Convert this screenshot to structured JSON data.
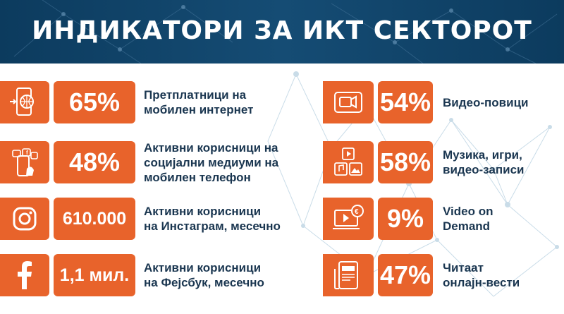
{
  "title": "ИНДИКАТОРИ ЗА ИКТ СЕКТОРОТ",
  "colors": {
    "header": "#0c3b5e",
    "accent": "#e8632b",
    "text": "#1a3650"
  },
  "left": [
    {
      "icon": "mobile-globe-icon",
      "value": "65%",
      "label": "Претплатници на\nмобилен интернет"
    },
    {
      "icon": "social-media-phone-icon",
      "value": "48%",
      "label": "Активни корисници на\nсоцијални медиуми на\nмобилен телефон"
    },
    {
      "icon": "instagram-icon",
      "value": "610.000",
      "label": "Активни корисници\nна Инстаграм, месечно"
    },
    {
      "icon": "facebook-icon",
      "value": "1,1 мил.",
      "label": "Активни корисници\nна Фејсбук, месечно"
    }
  ],
  "right": [
    {
      "icon": "video-call-icon",
      "value": "54%",
      "label": "Видео-повици"
    },
    {
      "icon": "media-icons",
      "value": "58%",
      "label": "Музика, игри,\nвидео-записи"
    },
    {
      "icon": "video-on-demand-icon",
      "value": "9%",
      "label": "Video on\nDemand"
    },
    {
      "icon": "news-icon",
      "value": "47%",
      "label": "Читаат\nонлајн-вести"
    }
  ]
}
